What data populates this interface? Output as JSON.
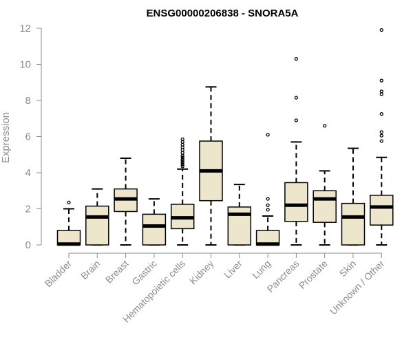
{
  "chart_data": {
    "type": "boxplot",
    "title": "ENSG00000206838 - SNORA5A",
    "xlabel": "",
    "ylabel": "Expression",
    "ylim": [
      0,
      12
    ],
    "yticks": [
      0,
      2,
      4,
      6,
      8,
      10,
      12
    ],
    "colors": {
      "box_fill": "#ede6cd",
      "stroke": "#000000",
      "axis": "#8c8c8c"
    },
    "categories": [
      "Bladder",
      "Brain",
      "Breast",
      "Gastric",
      "Hematopoietic cells",
      "Kidney",
      "Liver",
      "Lung",
      "Pancreas",
      "Prostate",
      "Skin",
      "Unknown / Other"
    ],
    "boxes": [
      {
        "name": "Bladder",
        "low": 0.0,
        "q1": 0.0,
        "median": 0.05,
        "q3": 0.8,
        "high": 2.0,
        "outliers": [
          2.35
        ]
      },
      {
        "name": "Brain",
        "low": 0.0,
        "q1": 0.0,
        "median": 1.55,
        "q3": 2.15,
        "high": 3.1,
        "outliers": []
      },
      {
        "name": "Breast",
        "low": 0.0,
        "q1": 1.85,
        "median": 2.55,
        "q3": 3.1,
        "high": 4.8,
        "outliers": []
      },
      {
        "name": "Gastric",
        "low": 0.0,
        "q1": 0.0,
        "median": 1.05,
        "q3": 1.7,
        "high": 2.55,
        "outliers": []
      },
      {
        "name": "Hematopoietic cells",
        "low": 0.0,
        "q1": 0.9,
        "median": 1.5,
        "q3": 2.25,
        "high": 4.2,
        "outliers": [
          4.35,
          4.45,
          4.55,
          4.65,
          4.75,
          4.85,
          4.95,
          5.1,
          5.25,
          5.4,
          5.55,
          5.7,
          5.85
        ]
      },
      {
        "name": "Kidney",
        "low": 0.0,
        "q1": 2.45,
        "median": 4.1,
        "q3": 5.75,
        "high": 8.75,
        "outliers": []
      },
      {
        "name": "Liver",
        "low": 0.0,
        "q1": 0.0,
        "median": 1.7,
        "q3": 2.1,
        "high": 3.35,
        "outliers": []
      },
      {
        "name": "Lung",
        "low": 0.0,
        "q1": 0.0,
        "median": 0.05,
        "q3": 0.8,
        "high": 1.6,
        "outliers": [
          1.95,
          2.2,
          2.55,
          6.1
        ]
      },
      {
        "name": "Pancreas",
        "low": 0.0,
        "q1": 1.3,
        "median": 2.2,
        "q3": 3.45,
        "high": 5.7,
        "outliers": [
          6.9,
          8.15,
          10.3
        ]
      },
      {
        "name": "Prostate",
        "low": 0.0,
        "q1": 1.25,
        "median": 2.55,
        "q3": 3.0,
        "high": 4.1,
        "outliers": [
          6.6
        ]
      },
      {
        "name": "Skin",
        "low": 0.0,
        "q1": 0.0,
        "median": 1.55,
        "q3": 2.3,
        "high": 5.35,
        "outliers": []
      },
      {
        "name": "Unknown / Other",
        "low": 0.0,
        "q1": 1.1,
        "median": 2.1,
        "q3": 2.75,
        "high": 4.85,
        "outliers": [
          5.75,
          6.05,
          6.25,
          7.25,
          8.35,
          8.5,
          9.1,
          11.9
        ]
      }
    ]
  }
}
